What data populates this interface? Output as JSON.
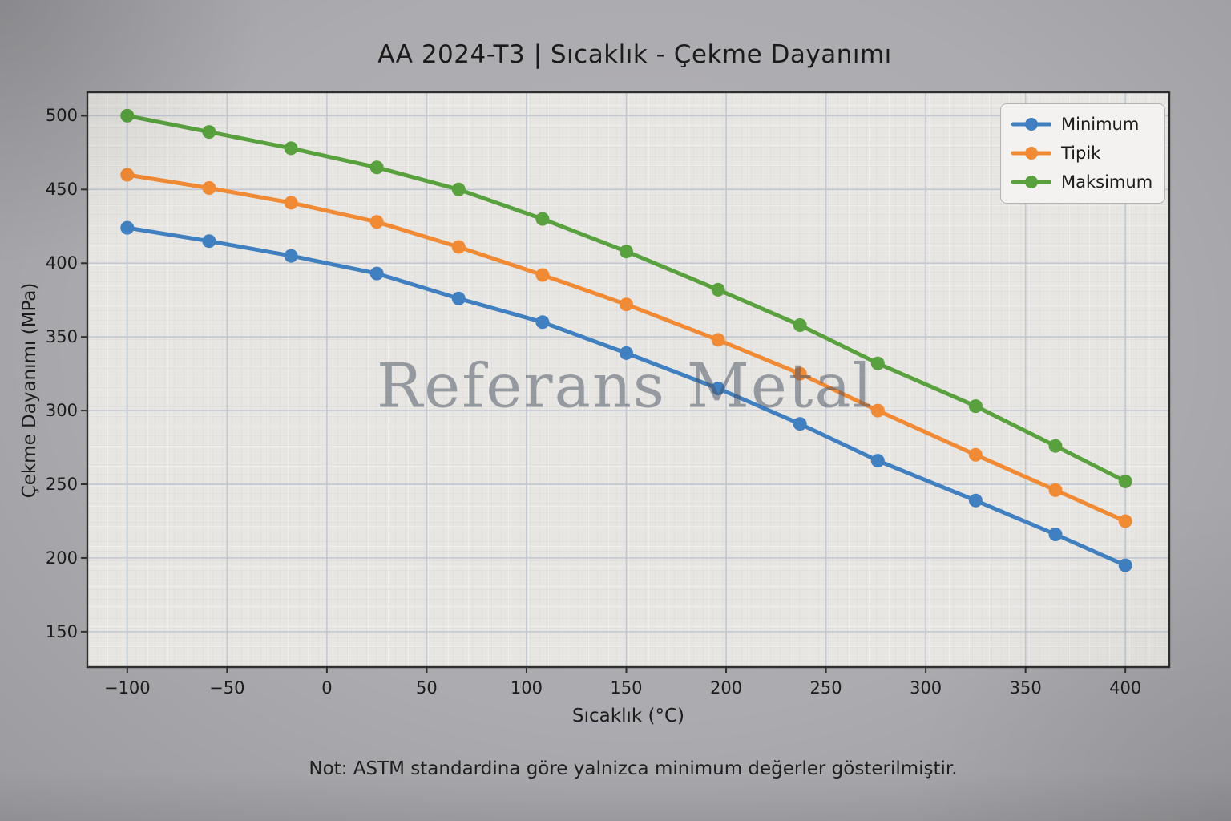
{
  "header": {
    "title": "AA 2024-T3 | Sıcaklık - Çekme Dayanımı"
  },
  "watermark": "Referans Metal",
  "footer": {
    "note": "Not: ASTM standardina göre yalnizca minimum değerler gösterilmiştir."
  },
  "legend": {
    "position": "upper right",
    "entries": [
      "Minimum",
      "Tipik",
      "Maksimum"
    ]
  },
  "colors": {
    "page_background": "#acabb0",
    "plot_background": "#e8e6e2",
    "gridline": "#c2c7d2",
    "spine": "#2e2e2e",
    "text": "#1b1b1b",
    "minimum_line": "#4080c0",
    "tipik_line": "#f08a35",
    "maksimum_line": "#58a13e"
  },
  "chart_data": {
    "type": "line",
    "title": "AA 2024-T3 | Sıcaklık - Çekme Dayanımı",
    "xlabel": "Sıcaklık (°C)",
    "ylabel": "Çekme Dayanımı (MPa)",
    "x": [
      -100,
      -59,
      -18,
      25,
      66,
      108,
      150,
      196,
      237,
      276,
      325,
      365,
      400
    ],
    "series": [
      {
        "name": "Minimum",
        "color": "#4080c0",
        "values": [
          424,
          415,
          405,
          393,
          376,
          360,
          339,
          315,
          291,
          266,
          239,
          216,
          195
        ]
      },
      {
        "name": "Tipik",
        "color": "#f08a35",
        "values": [
          460,
          451,
          441,
          428,
          411,
          392,
          372,
          348,
          325,
          300,
          270,
          246,
          225
        ]
      },
      {
        "name": "Maksimum",
        "color": "#58a13e",
        "values": [
          500,
          489,
          478,
          465,
          450,
          430,
          408,
          382,
          358,
          332,
          303,
          276,
          252
        ]
      }
    ],
    "xticks": [
      -100,
      -50,
      0,
      50,
      100,
      150,
      200,
      250,
      300,
      350,
      400
    ],
    "yticks": [
      150,
      200,
      250,
      300,
      350,
      400,
      450,
      500
    ],
    "xlim": [
      -120,
      422
    ],
    "ylim": [
      126,
      516
    ],
    "grid": true,
    "legend_position": "upper right",
    "marker": "circle"
  }
}
